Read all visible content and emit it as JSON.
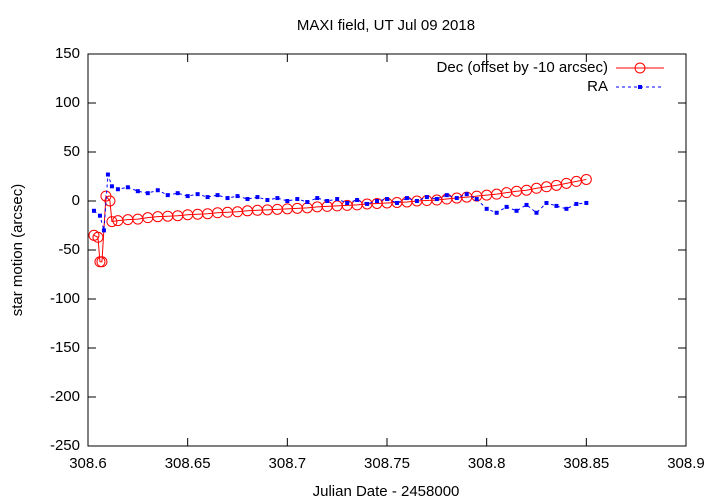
{
  "chart_data": {
    "type": "line",
    "title": "MAXI field, UT Jul 09 2018",
    "x_label": "Julian Date - 2458000",
    "y_label": "star motion (arcsec)",
    "xlim": [
      308.6,
      308.9
    ],
    "xticks": [
      308.6,
      308.65,
      308.7,
      308.75,
      308.8,
      308.85,
      308.9
    ],
    "ylim": [
      -250,
      150
    ],
    "yticks": [
      -250,
      -200,
      -150,
      -100,
      -50,
      0,
      50,
      100,
      150
    ],
    "grid": false,
    "legend": "top-right",
    "series": [
      {
        "name": "Dec (offset by -10 arcsec)",
        "color": "#ff0000",
        "marker": "circle",
        "dash": false,
        "x": [
          308.603,
          308.605,
          308.606,
          308.607,
          308.609,
          308.611,
          308.612,
          308.615,
          308.62,
          308.625,
          308.63,
          308.635,
          308.64,
          308.645,
          308.65,
          308.655,
          308.66,
          308.665,
          308.67,
          308.675,
          308.68,
          308.685,
          308.69,
          308.695,
          308.7,
          308.705,
          308.71,
          308.715,
          308.72,
          308.725,
          308.73,
          308.735,
          308.74,
          308.745,
          308.75,
          308.755,
          308.76,
          308.765,
          308.77,
          308.775,
          308.78,
          308.785,
          308.79,
          308.795,
          308.8,
          308.805,
          308.81,
          308.815,
          308.82,
          308.825,
          308.83,
          308.835,
          308.84,
          308.845,
          308.85
        ],
        "values": [
          -35,
          -37,
          -62,
          -62,
          5,
          0,
          -21,
          -20,
          -19,
          -18.5,
          -17,
          -16,
          -15.5,
          -15,
          -14,
          -13.5,
          -13,
          -12,
          -11.5,
          -11,
          -10,
          -9.5,
          -9,
          -8.5,
          -8,
          -7.5,
          -7,
          -6,
          -5.5,
          -5,
          -4.5,
          -4,
          -3,
          -2.5,
          -2,
          -1.5,
          -1,
          0,
          0.5,
          1,
          2,
          3,
          4,
          5,
          6,
          7,
          8.5,
          10,
          11,
          13,
          14.5,
          16,
          18,
          20,
          22
        ]
      },
      {
        "name": "RA",
        "color": "#0000ff",
        "marker": "square",
        "dash": true,
        "x": [
          308.603,
          308.606,
          308.608,
          308.61,
          308.612,
          308.615,
          308.62,
          308.625,
          308.63,
          308.635,
          308.64,
          308.645,
          308.65,
          308.655,
          308.66,
          308.665,
          308.67,
          308.675,
          308.68,
          308.685,
          308.69,
          308.695,
          308.7,
          308.705,
          308.71,
          308.715,
          308.72,
          308.725,
          308.73,
          308.735,
          308.74,
          308.745,
          308.75,
          308.755,
          308.76,
          308.765,
          308.77,
          308.775,
          308.78,
          308.785,
          308.79,
          308.795,
          308.8,
          308.805,
          308.81,
          308.815,
          308.82,
          308.825,
          308.83,
          308.835,
          308.84,
          308.845,
          308.85
        ],
        "values": [
          -10,
          -15,
          -30,
          27,
          15,
          12,
          14,
          10,
          8,
          11,
          6,
          8,
          5,
          7,
          4,
          6,
          3,
          5,
          2,
          4,
          1,
          3,
          0,
          2,
          -1,
          3,
          0,
          2,
          -2,
          1,
          -3,
          0,
          2,
          -2,
          3,
          0,
          4,
          2,
          6,
          3,
          7,
          2,
          -8,
          -12,
          -6,
          -10,
          -4,
          -12,
          -2,
          -5,
          -8,
          -3,
          -2
        ]
      }
    ]
  }
}
